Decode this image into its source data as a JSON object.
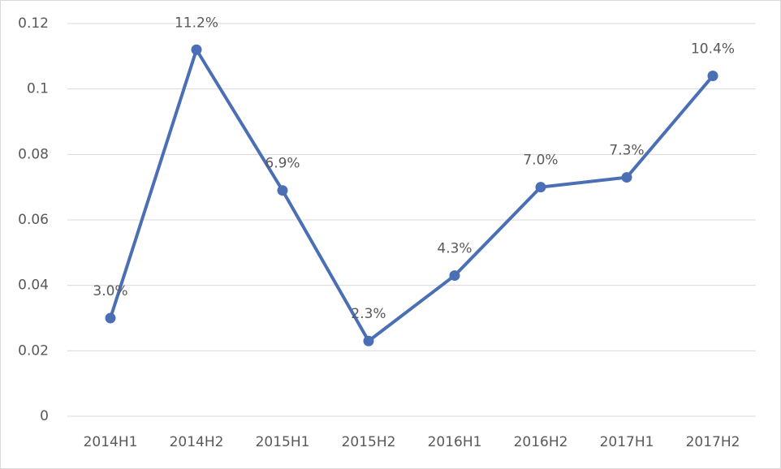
{
  "chart_data": {
    "type": "line",
    "categories": [
      "2014H1",
      "2014H2",
      "2015H1",
      "2015H2",
      "2016H1",
      "2016H2",
      "2017H1",
      "2017H2"
    ],
    "values": [
      0.03,
      0.112,
      0.069,
      0.023,
      0.043,
      0.07,
      0.073,
      0.104
    ],
    "value_labels": [
      "3.0%",
      "11.2%",
      "6.9%",
      "2.3%",
      "4.3%",
      "7.0%",
      "7.3%",
      "10.4%"
    ],
    "color": "#4a6fb5",
    "ylim": [
      0,
      0.12
    ],
    "yticks": [
      0,
      0.02,
      0.04,
      0.06,
      0.08,
      0.1,
      0.12
    ],
    "grid": true
  }
}
